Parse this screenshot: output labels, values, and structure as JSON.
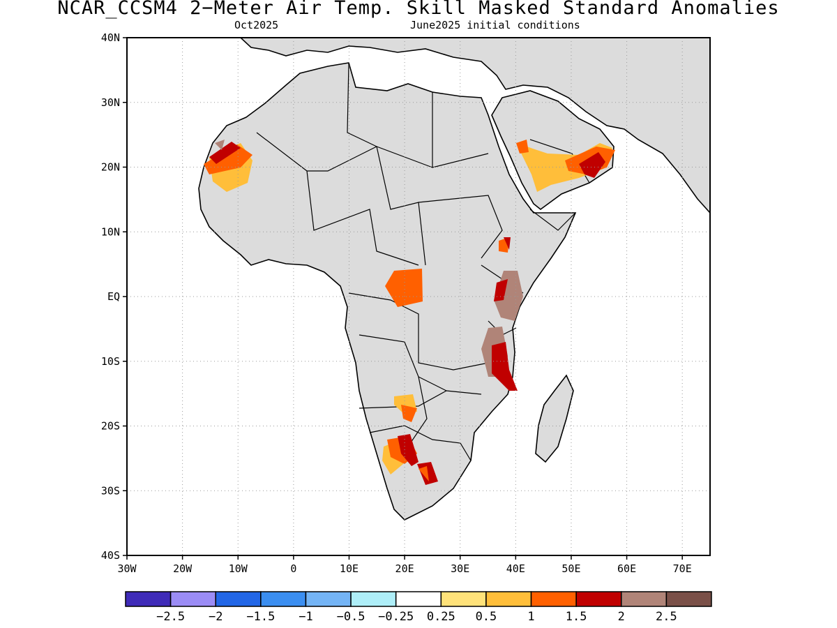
{
  "title": "NCAR_CCSM4 2−Meter Air Temp. Skill Masked Standard Anomalies",
  "subtitle_left": "Oct2025",
  "subtitle_right": "June2025 initial conditions",
  "axes": {
    "lat_ticks": [
      "40N",
      "30N",
      "20N",
      "10N",
      "EQ",
      "10S",
      "20S",
      "30S",
      "40S"
    ],
    "lon_ticks": [
      "30W",
      "20W",
      "10W",
      "0",
      "10E",
      "20E",
      "30E",
      "40E",
      "50E",
      "60E",
      "70E"
    ],
    "lon_range": [
      -30,
      75
    ],
    "lat_range": [
      -40,
      40
    ],
    "grid": true
  },
  "colorbar": {
    "colors": [
      "#3f2bb8",
      "#9b8cf5",
      "#2266e6",
      "#3b8ef0",
      "#74b4f5",
      "#aeeef8",
      "#ffffff",
      "#ffe27a",
      "#ffbe3a",
      "#ff6000",
      "#c00000",
      "#b08478",
      "#7a5048"
    ],
    "labels": [
      "−2.5",
      "−2",
      "−1.5",
      "−1",
      "−0.5",
      "−0.25",
      "0.25",
      "0.5",
      "1",
      "1.5",
      "2",
      "2.5"
    ]
  },
  "colors": {
    "land": "#dcdcdc",
    "ocean": "#ffffff",
    "coast": "#000000"
  }
}
